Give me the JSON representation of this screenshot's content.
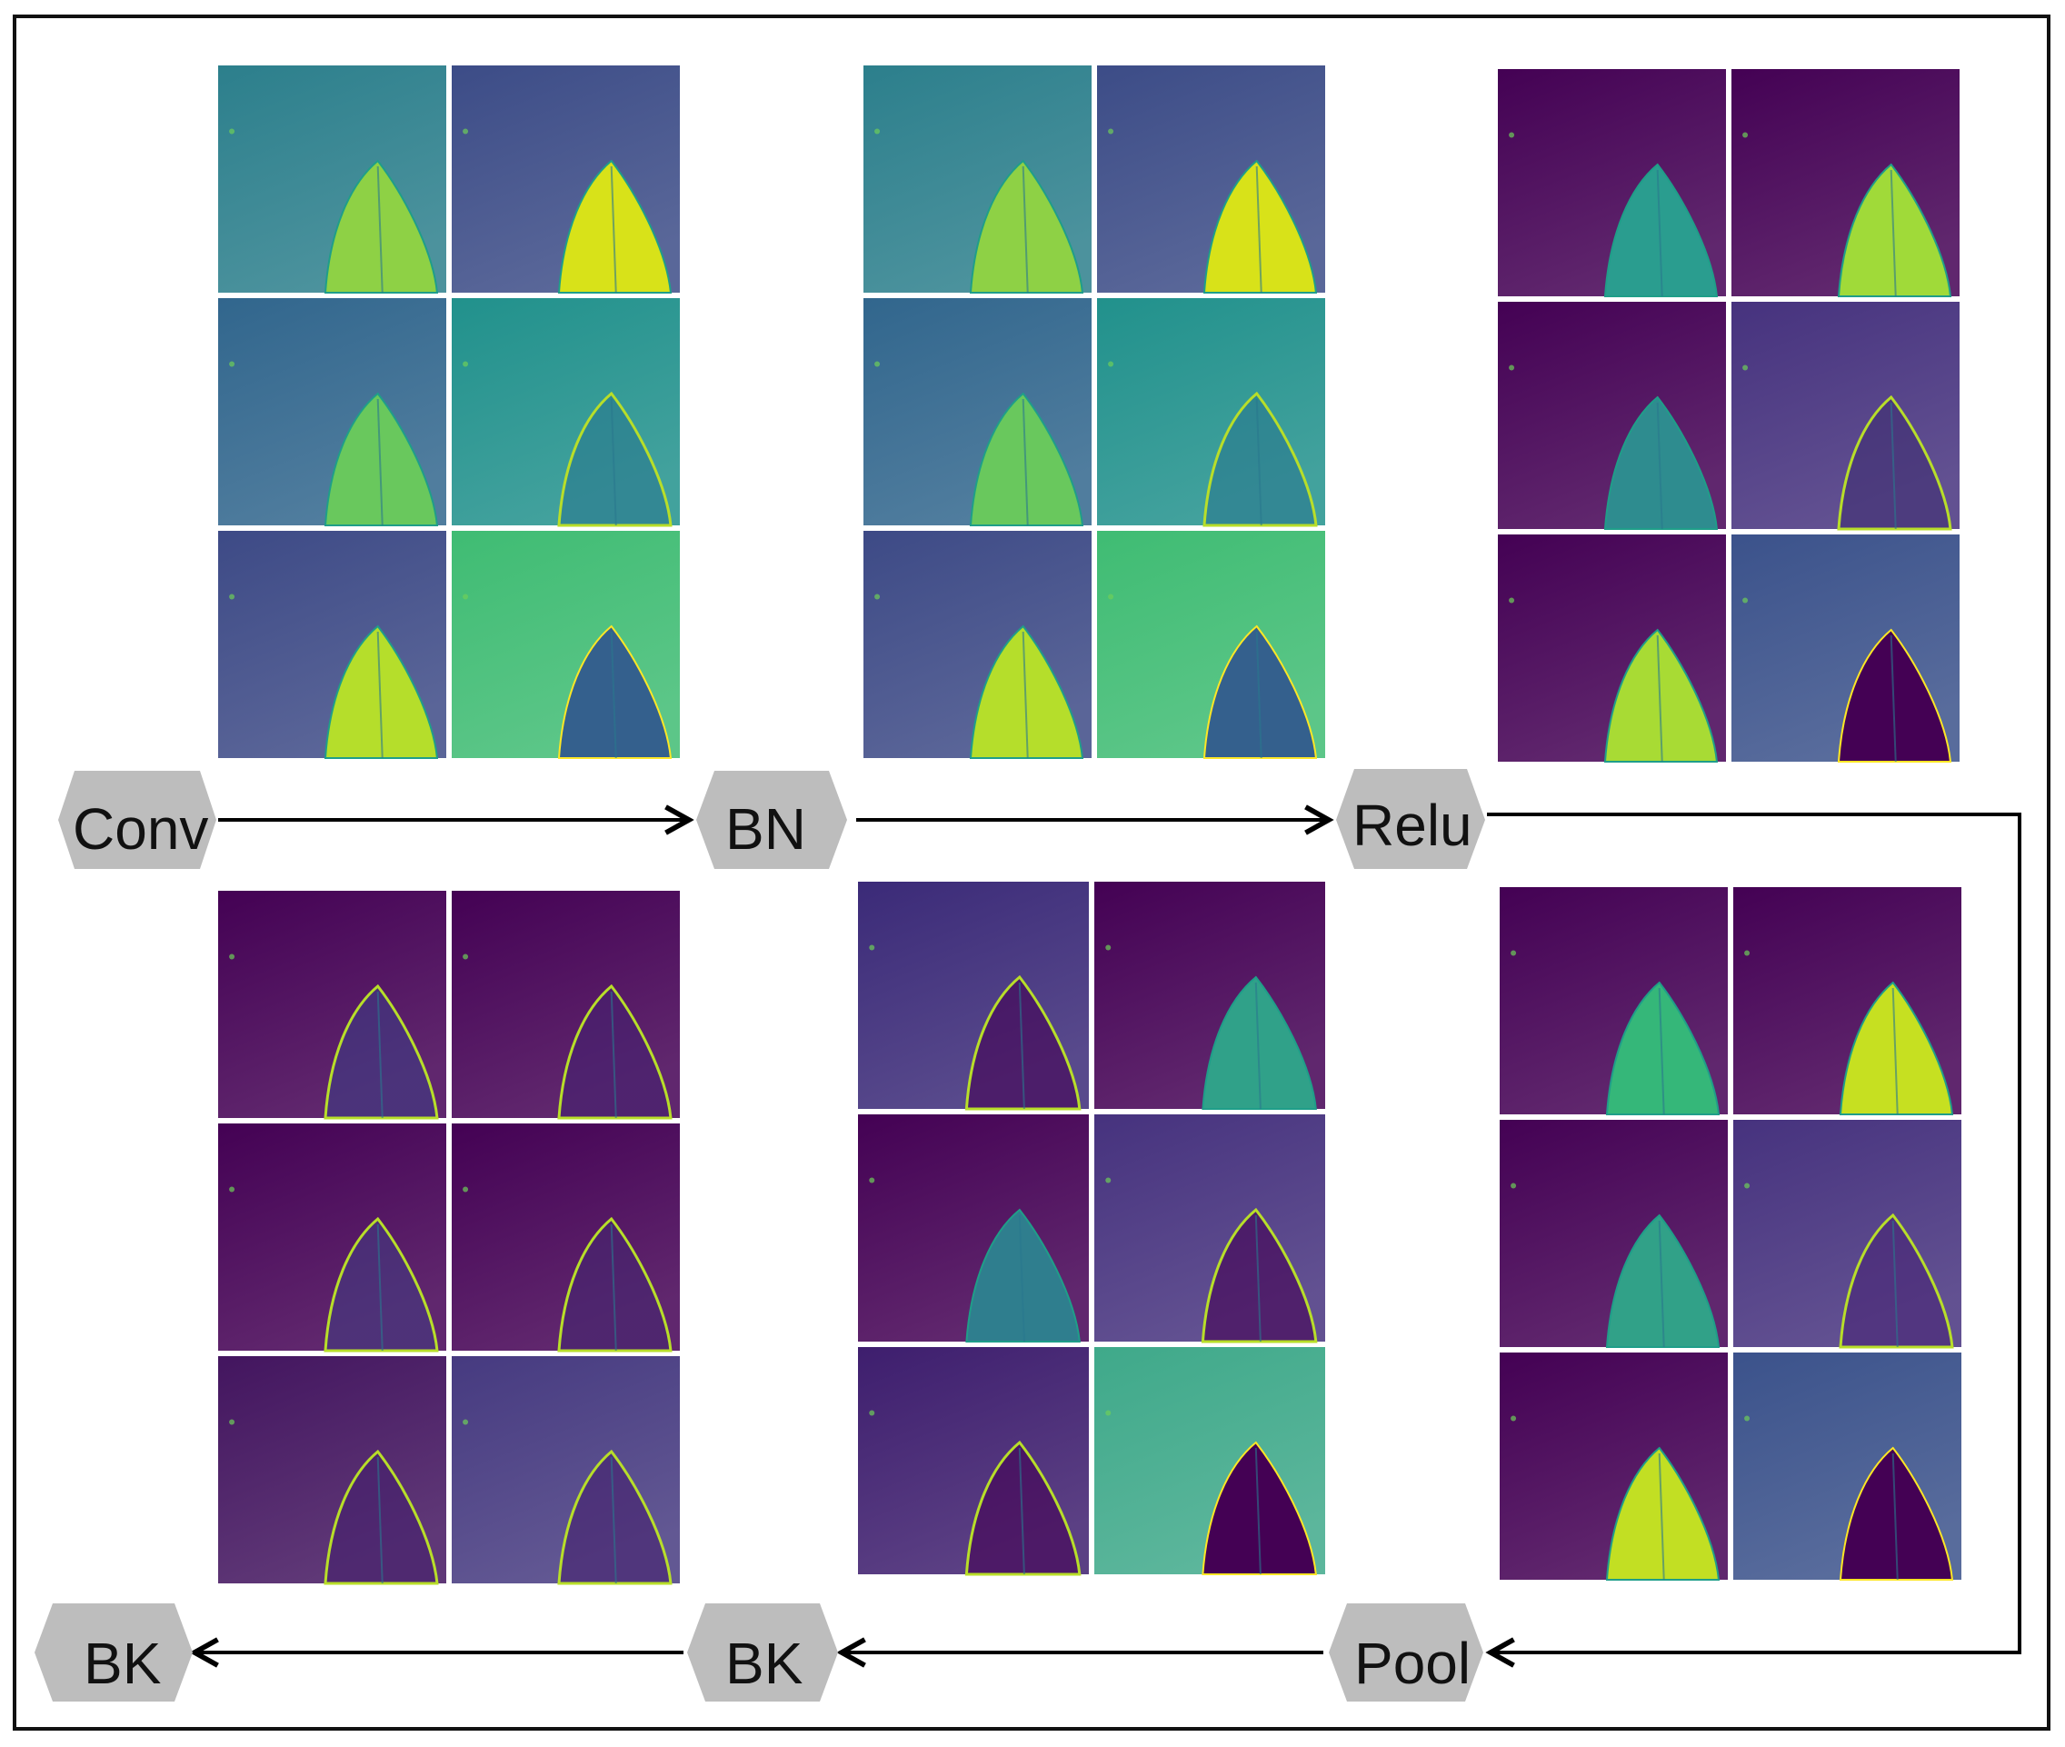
{
  "stages": {
    "conv": "Conv",
    "bn": "BN",
    "relu": "Relu",
    "pool": "Pool",
    "bk1": "BK",
    "bk2": "BK"
  },
  "panels": [
    {
      "id": "conv",
      "palette": "viridis",
      "bg": [
        "#2c7f8c",
        "#3c4c87",
        "#31668d",
        "#21918c",
        "#3d4a86",
        "#3fbc73"
      ],
      "leaf": [
        "#8ed145",
        "#d8e219",
        "#69c85d",
        "#2a788e",
        "#b5de2b",
        "#34608d"
      ],
      "style": [
        "solid",
        "solid",
        "solid",
        "edge",
        "solid",
        "inverse"
      ]
    },
    {
      "id": "bn",
      "palette": "viridis",
      "bg": [
        "#2c7f8c",
        "#3c4c87",
        "#31668d",
        "#21918c",
        "#3d4a86",
        "#3fbc73"
      ],
      "leaf": [
        "#8ed145",
        "#d8e219",
        "#69c85d",
        "#2a788e",
        "#b5de2b",
        "#34608d"
      ],
      "style": [
        "solid",
        "solid",
        "solid",
        "edge",
        "solid",
        "inverse"
      ]
    },
    {
      "id": "relu",
      "palette": "viridis",
      "bg": [
        "#440154",
        "#440154",
        "#440154",
        "#46327e",
        "#440154",
        "#3b528b"
      ],
      "leaf": [
        "#2a9d8f",
        "#a0da39",
        "#2e8c8f",
        "#3f2f72",
        "#a8db34",
        "#440154"
      ],
      "style": [
        "solid",
        "solid",
        "solid",
        "edge",
        "solid",
        "inverse"
      ]
    },
    {
      "id": "pool",
      "palette": "viridis",
      "bg": [
        "#440154",
        "#440154",
        "#440154",
        "#46327e",
        "#440154",
        "#3b528b"
      ],
      "leaf": [
        "#35b779",
        "#c6e021",
        "#31a188",
        "#482475",
        "#c2df23",
        "#440154"
      ],
      "style": [
        "solid",
        "solid",
        "solid",
        "edge",
        "solid",
        "inverse"
      ]
    },
    {
      "id": "bk2",
      "palette": "viridis",
      "bg": [
        "#3b2a78",
        "#440154",
        "#440154",
        "#46327e",
        "#3e1e6e",
        "#3fa98a"
      ],
      "leaf": [
        "#440154",
        "#30a189",
        "#2f7e8e",
        "#440154",
        "#440154",
        "#440154"
      ],
      "style": [
        "edge",
        "solid",
        "solid",
        "edge",
        "edge",
        "inverse"
      ]
    },
    {
      "id": "bk1",
      "palette": "viridis",
      "bg": [
        "#440154",
        "#440154",
        "#440154",
        "#440154",
        "#43155f",
        "#463a80"
      ],
      "leaf": [
        "#3e3c83",
        "#45226f",
        "#433b80",
        "#45266f",
        "#45206c",
        "#45206c"
      ],
      "style": [
        "edge",
        "edge",
        "edge",
        "edge",
        "edge",
        "edge"
      ]
    }
  ]
}
